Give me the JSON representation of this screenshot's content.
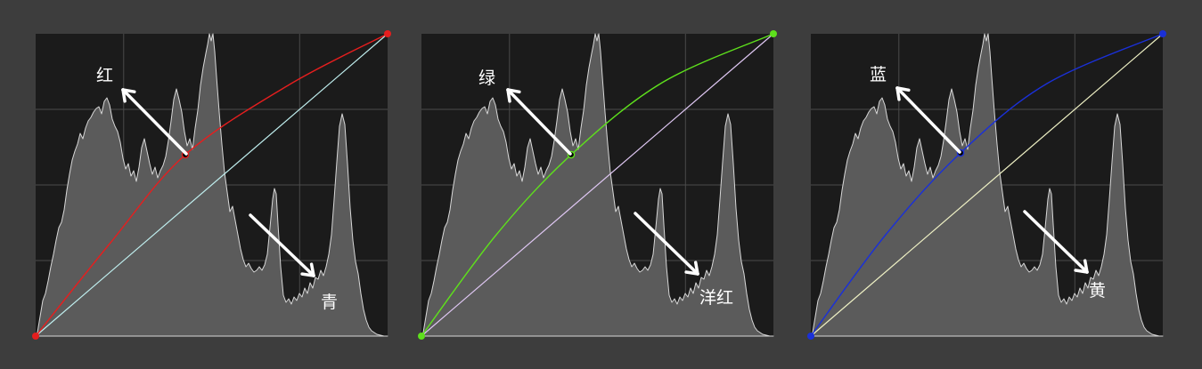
{
  "colors": {
    "page_background": "#3d3d3d",
    "plot_background": "#1b1b1b",
    "grid": "#4b4b4b",
    "histogram_fill": "#5b5b5b",
    "histogram_outline": "#d8d8d8",
    "annotation": "#ffffff"
  },
  "panels": [
    {
      "channel": "red",
      "curve_color": "#e61e1e",
      "diagonal_color": "#bfeeee",
      "label_up": "红",
      "label_down": "青"
    },
    {
      "channel": "green",
      "curve_color": "#5ee01c",
      "diagonal_color": "#e0c8f4",
      "label_up": "绿",
      "label_down": "洋红"
    },
    {
      "channel": "blue",
      "curve_color": "#1a30d8",
      "diagonal_color": "#eef0c4",
      "label_up": "蓝",
      "label_down": "黄"
    }
  ]
}
